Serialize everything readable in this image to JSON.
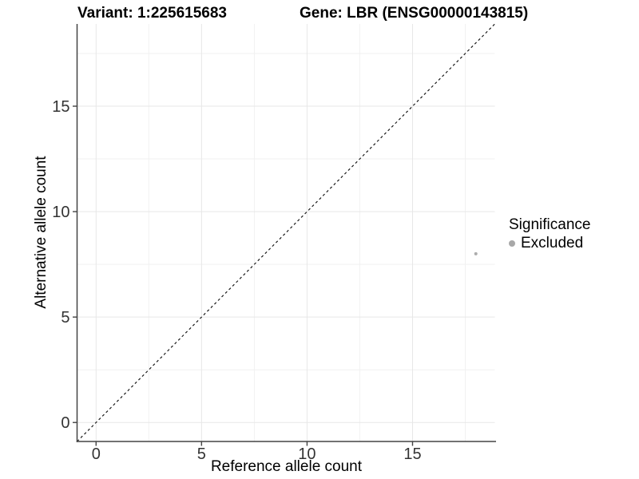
{
  "header": {
    "variant_title": "Variant: 1:225615683",
    "gene_title": "Gene: LBR (ENSG00000143815)"
  },
  "legend": {
    "title": "Significance",
    "items": [
      {
        "label": "Excluded",
        "color": "#a8a8a8"
      }
    ]
  },
  "colors": {
    "point": "#acacac",
    "axis_line": "#434343",
    "tick_mark": "#434343",
    "tick_text": "#333333",
    "grid_major": "#e7e7e7",
    "grid_minor": "#f1f1f1",
    "dashed_line": "#1a1a1a",
    "background": "#ffffff"
  },
  "chart_data": {
    "type": "scatter",
    "title": "Variant: 1:225615683 — Gene: LBR (ENSG00000143815)",
    "xlabel": "Reference allele count",
    "ylabel": "Alternative allele count",
    "xlim": [
      -0.9,
      18.9
    ],
    "ylim": [
      -0.9,
      18.9
    ],
    "x_ticks": [
      0,
      5,
      10,
      15
    ],
    "y_ticks": [
      0,
      5,
      10,
      15
    ],
    "x_minor": [
      2.5,
      7.5,
      12.5,
      17.5
    ],
    "y_minor": [
      2.5,
      7.5,
      12.5,
      17.5
    ],
    "grid": true,
    "legend_position": "right",
    "reference_line": {
      "type": "identity y=x",
      "style": "dashed",
      "color": "#1a1a1a"
    },
    "series": [
      {
        "name": "Excluded",
        "color": "#acacac",
        "points": [
          {
            "x": 18,
            "y": 8
          }
        ]
      }
    ]
  }
}
